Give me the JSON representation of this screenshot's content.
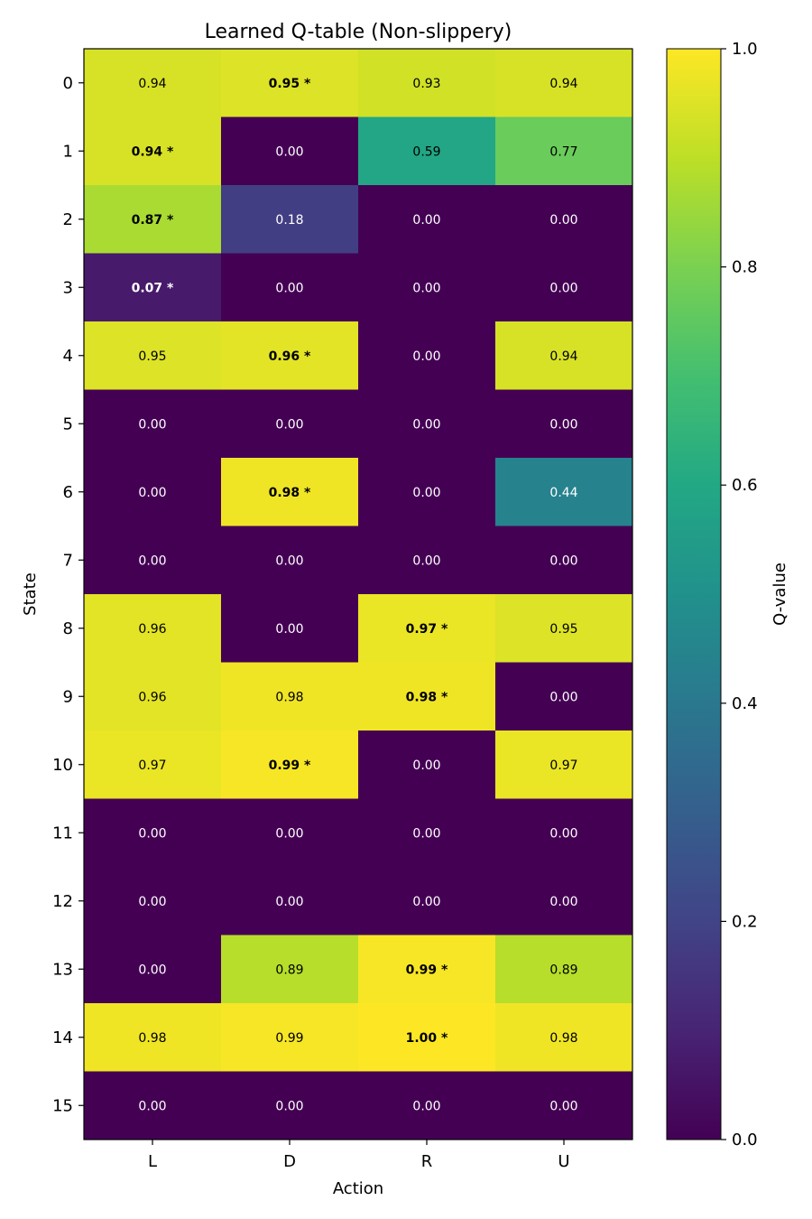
{
  "chart_data": {
    "type": "heatmap",
    "title": "Learned Q-table (Non-slippery)",
    "xlabel": "Action",
    "ylabel": "State",
    "x_categories": [
      "L",
      "D",
      "R",
      "U"
    ],
    "y_categories": [
      "0",
      "1",
      "2",
      "3",
      "4",
      "5",
      "6",
      "7",
      "8",
      "9",
      "10",
      "11",
      "12",
      "13",
      "14",
      "15"
    ],
    "values": [
      [
        0.94,
        0.95,
        0.93,
        0.94
      ],
      [
        0.94,
        0.0,
        0.59,
        0.77
      ],
      [
        0.87,
        0.18,
        0.0,
        0.0
      ],
      [
        0.07,
        0.0,
        0.0,
        0.0
      ],
      [
        0.95,
        0.96,
        0.0,
        0.94
      ],
      [
        0.0,
        0.0,
        0.0,
        0.0
      ],
      [
        0.0,
        0.98,
        0.0,
        0.44
      ],
      [
        0.0,
        0.0,
        0.0,
        0.0
      ],
      [
        0.96,
        0.0,
        0.97,
        0.95
      ],
      [
        0.96,
        0.98,
        0.98,
        0.0
      ],
      [
        0.97,
        0.99,
        0.0,
        0.97
      ],
      [
        0.0,
        0.0,
        0.0,
        0.0
      ],
      [
        0.0,
        0.0,
        0.0,
        0.0
      ],
      [
        0.0,
        0.89,
        0.99,
        0.89
      ],
      [
        0.98,
        0.99,
        1.0,
        0.98
      ],
      [
        0.0,
        0.0,
        0.0,
        0.0
      ]
    ],
    "best_action": [
      1,
      0,
      0,
      0,
      1,
      null,
      1,
      null,
      2,
      2,
      1,
      null,
      null,
      2,
      2,
      null
    ],
    "best_marker": "*",
    "colormap": "viridis",
    "vmin": 0.0,
    "vmax": 1.0,
    "colorbar": {
      "label": "Q-value",
      "ticks": [
        "0.0",
        "0.2",
        "0.4",
        "0.6",
        "0.8",
        "1.0"
      ]
    }
  }
}
